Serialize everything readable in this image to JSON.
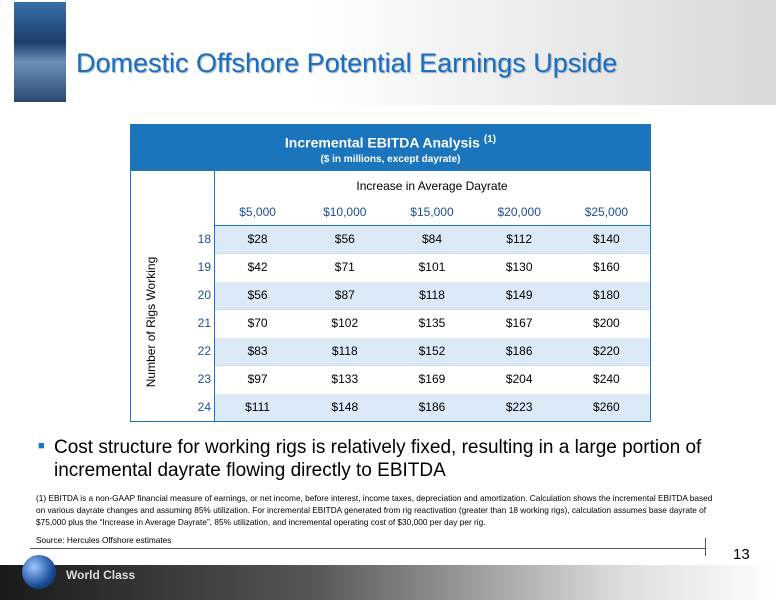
{
  "header": {
    "title": "Domestic Offshore Potential Earnings Upside"
  },
  "table": {
    "title": "Incremental EBITDA Analysis",
    "title_note": "(1)",
    "subtitle": "($ in millions, except dayrate)",
    "column_group": "Increase in Average Dayrate",
    "row_group": "Number of Rigs Working",
    "columns": [
      "$5,000",
      "$10,000",
      "$15,000",
      "$20,000",
      "$25,000"
    ],
    "rows": [
      [
        "18",
        "$28",
        "$56",
        "$84",
        "$112",
        "$140"
      ],
      [
        "19",
        "$42",
        "$71",
        "$101",
        "$130",
        "$160"
      ],
      [
        "20",
        "$56",
        "$87",
        "$118",
        "$149",
        "$180"
      ],
      [
        "21",
        "$70",
        "$102",
        "$135",
        "$167",
        "$200"
      ],
      [
        "22",
        "$83",
        "$118",
        "$152",
        "$186",
        "$220"
      ],
      [
        "23",
        "$97",
        "$133",
        "$169",
        "$204",
        "$240"
      ],
      [
        "24",
        "$111",
        "$148",
        "$186",
        "$223",
        "$260"
      ]
    ]
  },
  "bullet": "Cost structure for working rigs is relatively fixed, resulting in a large portion of incremental dayrate flowing directly to EBITDA",
  "footnote": "(1)  EBITDA is a non-GAAP financial measure of earnings, or net income, before interest, income taxes, depreciation and amortization.  Calculation shows the incremental EBITDA based on various dayrate changes and assuming 85% utilization. For incremental EBITDA generated from rig reactivation (greater than 18 working rigs), calculation assumes base dayrate of $75,000 plus the “Increase in Average Dayrate”, 85% utilization, and incremental operating cost of $30,000 per day per rig.",
  "source": "Source: Hercules Offshore estimates",
  "page_number": "13",
  "footer": {
    "brand": "World Class"
  }
}
